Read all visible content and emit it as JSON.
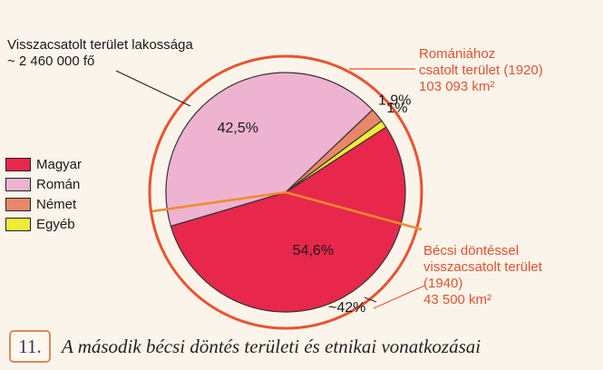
{
  "chart_data": {
    "type": "pie",
    "title": "",
    "categories": [
      "Magyar",
      "Román",
      "Német",
      "Egyéb"
    ],
    "values": [
      54.6,
      42.5,
      1.9,
      1
    ],
    "value_labels": [
      "54,6%",
      "42,5%",
      "1,9%",
      "1%"
    ],
    "colors": [
      "#e8274d",
      "#eeb3d0",
      "#e9876a",
      "#f0ec3a"
    ],
    "legend_position": "left",
    "annotations": {
      "population": [
        "Visszacsatolt terület lakossága",
        "~ 2 460 000 fő"
      ],
      "romania_area": [
        "Romániához",
        "csatolt terület (1920)",
        "103 093 km²"
      ],
      "vienna_area": [
        "Bécsi döntéssel",
        "visszacsatolt terület",
        "(1940)",
        "43 500 km²"
      ],
      "share": "~42%"
    }
  },
  "caption": {
    "number": "11.",
    "text": "A második bécsi döntés területi és etnikai vonatkozásai"
  }
}
